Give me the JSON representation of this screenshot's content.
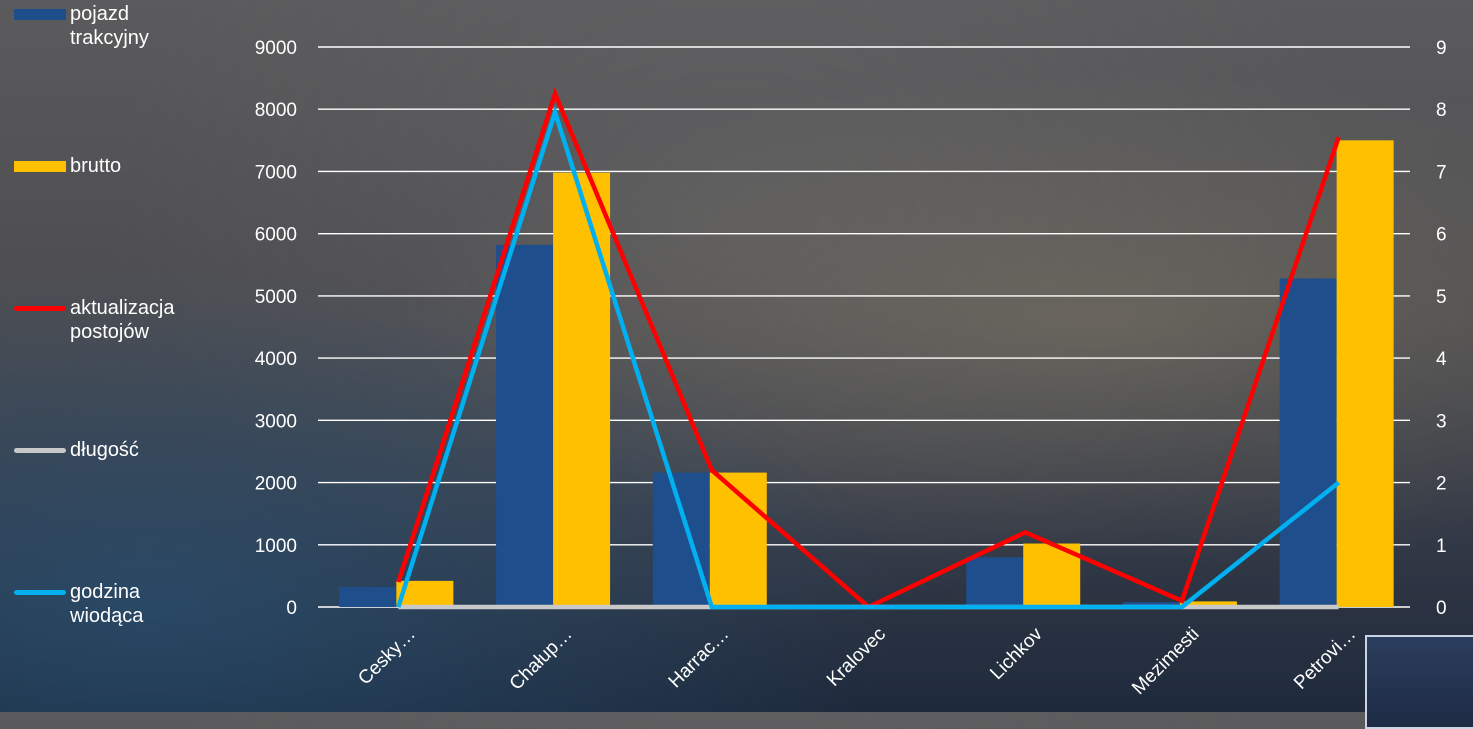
{
  "chart_data": {
    "type": "bar",
    "categories": [
      "Cesky…",
      "Chałup…",
      "Harrac…",
      "Kralovec",
      "Lichkov",
      "Mezimesti",
      "Petrovi…"
    ],
    "series": [
      {
        "name": "pojazd trakcyjny",
        "kind": "bar",
        "axis": "left",
        "color": "#1f4e8c",
        "values": [
          320,
          5820,
          2160,
          0,
          800,
          80,
          5280
        ]
      },
      {
        "name": "brutto",
        "kind": "bar",
        "axis": "left",
        "color": "#ffc000",
        "values": [
          420,
          6980,
          2160,
          0,
          1020,
          90,
          7500
        ]
      },
      {
        "name": "aktualizacja postojów",
        "kind": "line",
        "axis": "right",
        "color": "#ff0000",
        "values": [
          0.4,
          8.25,
          2.2,
          0,
          1.2,
          0.1,
          7.55
        ]
      },
      {
        "name": "długość",
        "kind": "line",
        "axis": "right",
        "color": "#c8c8c8",
        "values": [
          0,
          0,
          0,
          0,
          0,
          0,
          0
        ]
      },
      {
        "name": "godzina wiodąca",
        "kind": "line",
        "axis": "right",
        "color": "#00b0f0",
        "values": [
          0,
          7.95,
          0,
          0,
          0,
          0,
          2.0
        ]
      }
    ],
    "y_left": {
      "min": 0,
      "max": 9000,
      "ticks": [
        0,
        1000,
        2000,
        3000,
        4000,
        5000,
        6000,
        7000,
        8000,
        9000
      ]
    },
    "y_right": {
      "min": 0,
      "max": 9,
      "ticks": [
        0,
        1,
        2,
        3,
        4,
        5,
        6,
        7,
        8,
        9
      ]
    },
    "grid": true,
    "legend_position": "left"
  }
}
